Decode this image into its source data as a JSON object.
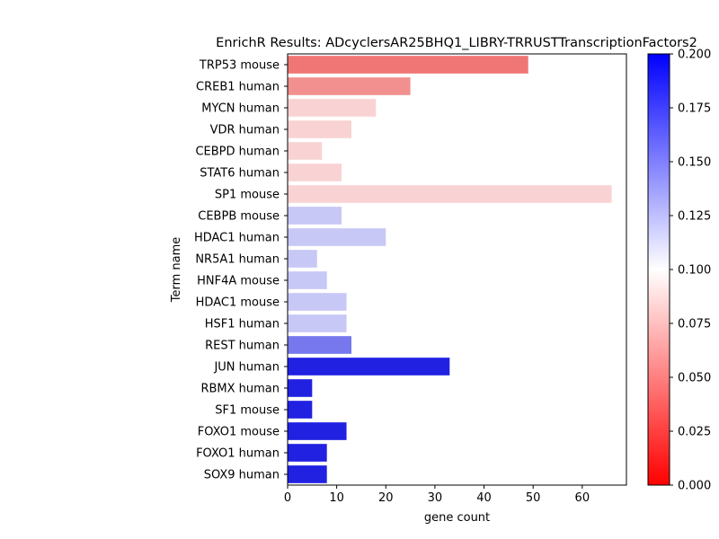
{
  "chart_data": {
    "type": "bar",
    "orientation": "horizontal",
    "title": "EnrichR Results: ADcyclersAR25BHQ1_LIBRY-TRRUSTTranscriptionFactors2",
    "xlabel": "gene count",
    "ylabel": "Term name",
    "xlim": [
      0,
      69
    ],
    "xticks": [
      0,
      10,
      20,
      30,
      40,
      50,
      60
    ],
    "categories": [
      "TRP53 mouse",
      "CREB1 human",
      "MYCN human",
      "VDR human",
      "CEBPD human",
      "STAT6 human",
      "SP1 mouse",
      "CEBPB mouse",
      "HDAC1 human",
      "NR5A1 human",
      "HNF4A mouse",
      "HDAC1 mouse",
      "HSF1 human",
      "REST human",
      "JUN human",
      "RBMX human",
      "SF1 mouse",
      "FOXO1 mouse",
      "FOXO1 human",
      "SOX9 human"
    ],
    "values": [
      49,
      25,
      18,
      13,
      7,
      11,
      66,
      11,
      20,
      6,
      8,
      12,
      12,
      13,
      33,
      5,
      5,
      12,
      8,
      8
    ],
    "colors": [
      "#f07676",
      "#f29090",
      "#f9d3d3",
      "#f9d3d3",
      "#f9d3d3",
      "#f9d3d3",
      "#f9d3d3",
      "#c8c8f6",
      "#c8c8f6",
      "#c8c8f6",
      "#c8c8f6",
      "#c8c8f6",
      "#c8c8f6",
      "#7777ee",
      "#2121e2",
      "#2121e2",
      "#2121e2",
      "#2121e2",
      "#2121e2",
      "#2121e2"
    ],
    "grid": false,
    "colorbar": {
      "range": [
        0,
        0.2
      ],
      "ticks": [
        "0.000",
        "0.025",
        "0.050",
        "0.075",
        "0.100",
        "0.125",
        "0.150",
        "0.175",
        "0.200"
      ],
      "colormap": [
        "#ff0000",
        "#ffffff",
        "#0000ff"
      ]
    }
  }
}
